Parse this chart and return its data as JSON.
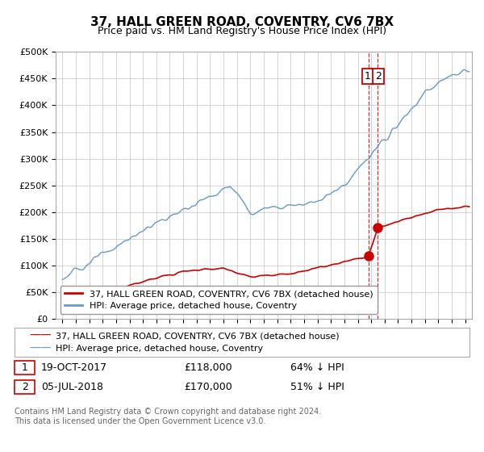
{
  "title": "37, HALL GREEN ROAD, COVENTRY, CV6 7BX",
  "subtitle": "Price paid vs. HM Land Registry's House Price Index (HPI)",
  "ylabel_ticks": [
    "£0",
    "£50K",
    "£100K",
    "£150K",
    "£200K",
    "£250K",
    "£300K",
    "£350K",
    "£400K",
    "£450K",
    "£500K"
  ],
  "ytick_values": [
    0,
    50000,
    100000,
    150000,
    200000,
    250000,
    300000,
    350000,
    400000,
    450000,
    500000
  ],
  "ylim": [
    0,
    500000
  ],
  "xlim_start": 1994.5,
  "xlim_end": 2025.5,
  "sale1_date": "19-OCT-2017",
  "sale1_price": 118000,
  "sale1_year": 2017.8,
  "sale2_date": "05-JUL-2018",
  "sale2_price": 170000,
  "sale2_year": 2018.5,
  "sale1_label": "64% ↓ HPI",
  "sale2_label": "51% ↓ HPI",
  "red_line_color": "#cc0000",
  "blue_line_color": "#6699cc",
  "grid_color": "#cccccc",
  "background_color": "#ffffff",
  "legend_label_red": "37, HALL GREEN ROAD, COVENTRY, CV6 7BX (detached house)",
  "legend_label_blue": "HPI: Average price, detached house, Coventry",
  "footnote": "Contains HM Land Registry data © Crown copyright and database right 2024.\nThis data is licensed under the Open Government Licence v3.0.",
  "sale_box_color": "#cc0000",
  "title_fontsize": 11,
  "subtitle_fontsize": 9,
  "tick_fontsize": 8,
  "legend_fontsize": 8
}
